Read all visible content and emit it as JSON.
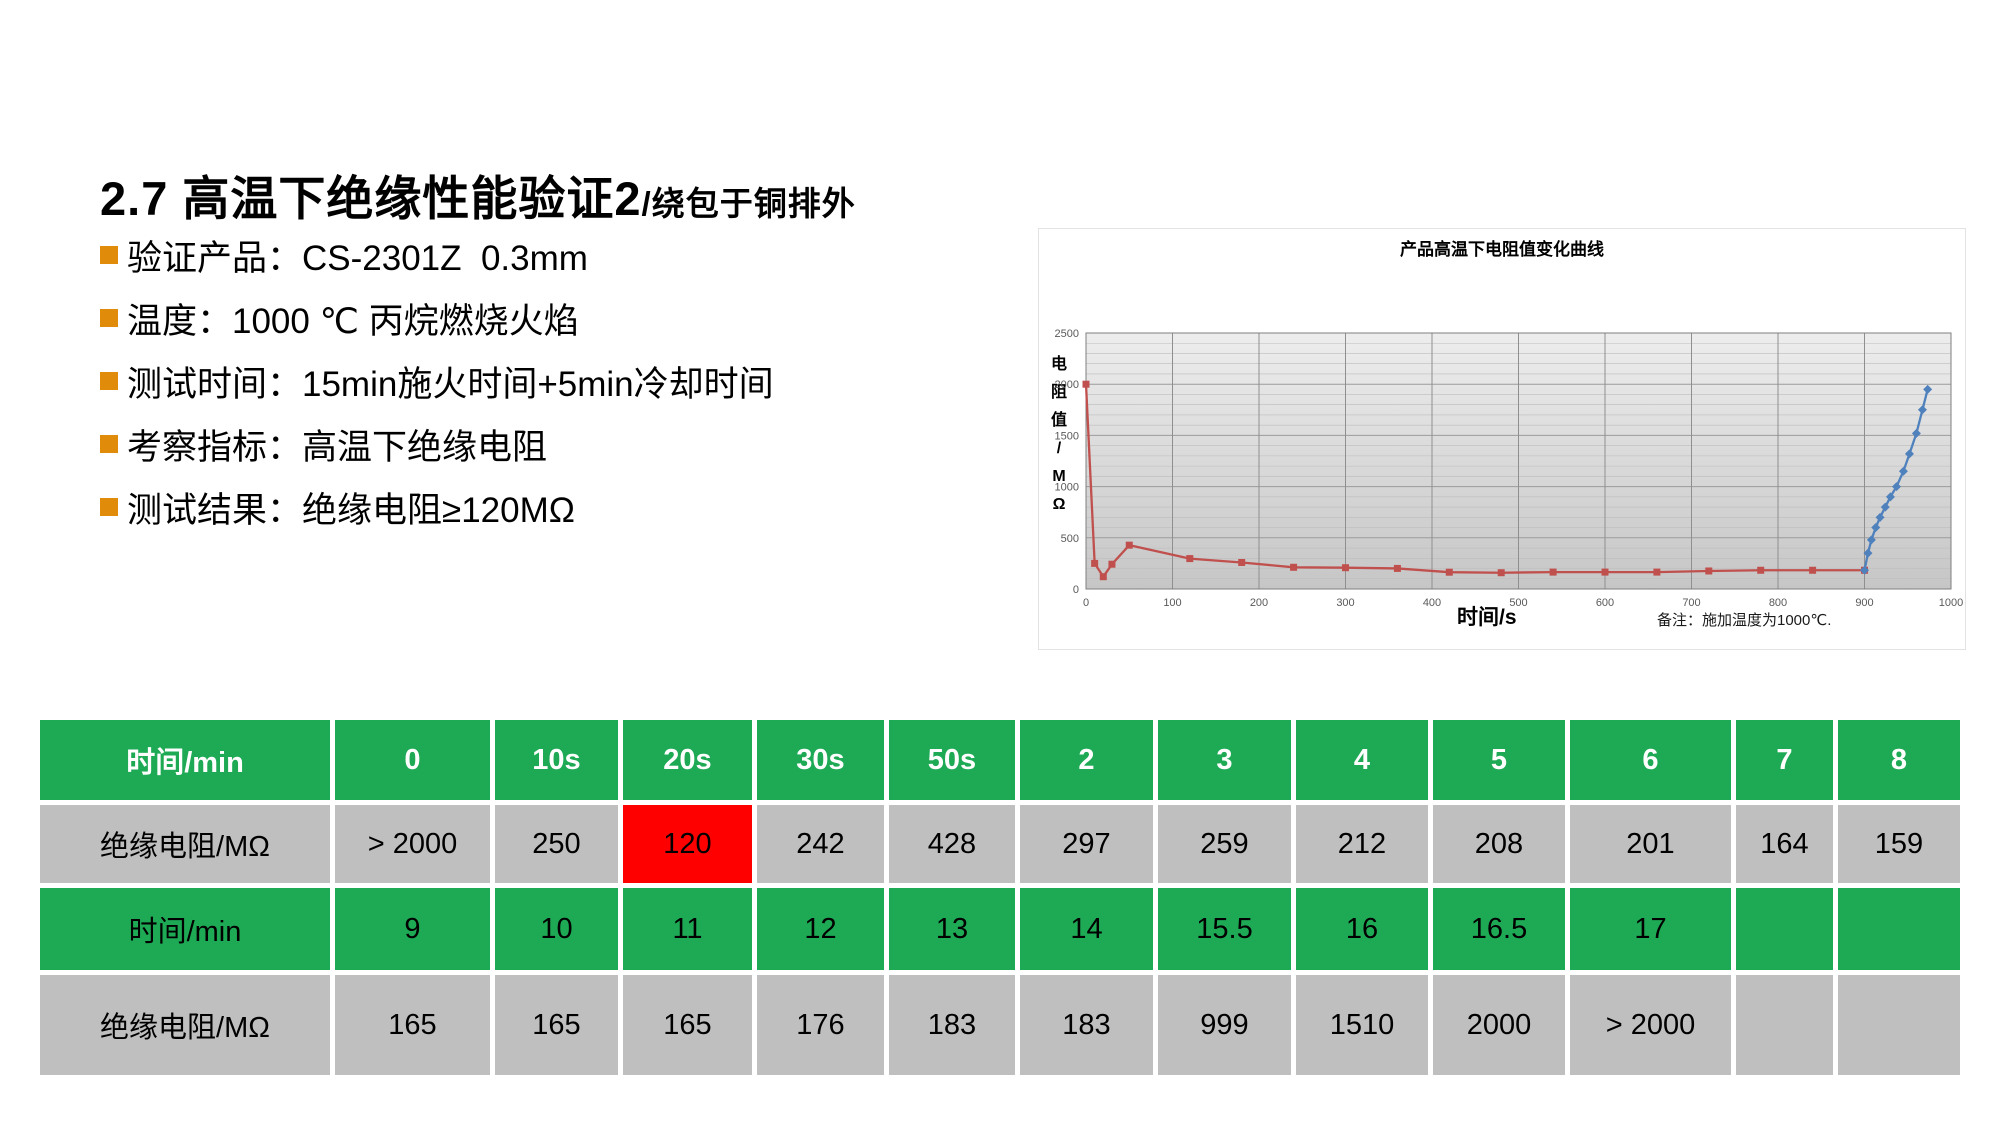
{
  "slide": {
    "title_main": "2.7 高温下绝缘性能验证2",
    "title_suffix": "/绕包于铜排外",
    "bullets": [
      "验证产品：CS-2301Z  0.3mm",
      "温度：1000 ℃ 丙烷燃烧火焰",
      "测试时间：15min施火时间+5min冷却时间",
      "考察指标：高温下绝缘电阻",
      "测试结果：绝缘电阻≥120MΩ"
    ]
  },
  "chart_data": {
    "type": "line",
    "title": "产品高温下电阻值变化曲线",
    "xlabel": "时间/s",
    "ylabel": "电阻值/MΩ",
    "note": "备注：施加温度为1000℃.",
    "xlim": [
      0,
      1000
    ],
    "ylim": [
      0,
      2500
    ],
    "x_ticks": [
      0,
      100,
      200,
      300,
      400,
      500,
      600,
      700,
      800,
      900,
      1000
    ],
    "y_ticks": [
      0,
      500,
      1000,
      1500,
      2000,
      2500
    ],
    "grid": "on",
    "legend": "none",
    "series": [
      {
        "id": "red-series-heating",
        "color": "#c0504d",
        "marker": "square",
        "points": [
          [
            0,
            2000
          ],
          [
            10,
            250
          ],
          [
            20,
            120
          ],
          [
            30,
            242
          ],
          [
            50,
            428
          ],
          [
            120,
            297
          ],
          [
            180,
            259
          ],
          [
            240,
            212
          ],
          [
            300,
            208
          ],
          [
            360,
            201
          ],
          [
            420,
            164
          ],
          [
            480,
            159
          ],
          [
            540,
            165
          ],
          [
            600,
            165
          ],
          [
            660,
            165
          ],
          [
            720,
            176
          ],
          [
            780,
            183
          ],
          [
            840,
            183
          ],
          [
            900,
            183
          ]
        ]
      },
      {
        "id": "blue-series-cooling",
        "color": "#4f81bd",
        "marker": "diamond",
        "points": [
          [
            900,
            183
          ],
          [
            904,
            350
          ],
          [
            908,
            480
          ],
          [
            913,
            600
          ],
          [
            918,
            700
          ],
          [
            924,
            800
          ],
          [
            930,
            900
          ],
          [
            937,
            1000
          ],
          [
            945,
            1150
          ],
          [
            952,
            1320
          ],
          [
            960,
            1520
          ],
          [
            967,
            1750
          ],
          [
            973,
            1950
          ]
        ]
      }
    ]
  },
  "table": {
    "rows": [
      {
        "style": "green",
        "white_text": true,
        "cells": [
          "时间/min",
          "0",
          "10s",
          "20s",
          "30s",
          "50s",
          "2",
          "3",
          "4",
          "5",
          "6",
          "7",
          "8"
        ]
      },
      {
        "style": "gray",
        "highlight_index": 3,
        "cells": [
          "绝缘电阻/MΩ",
          "> 2000",
          "250",
          "120",
          "242",
          "428",
          "297",
          "259",
          "212",
          "208",
          "201",
          "164",
          "159"
        ]
      },
      {
        "style": "green",
        "cells": [
          "时间/min",
          "9",
          "10",
          "11",
          "12",
          "13",
          "14",
          "15.5",
          "16",
          "16.5",
          "17",
          "",
          ""
        ]
      },
      {
        "style": "gray",
        "cells": [
          "绝缘电阻/MΩ",
          "165",
          "165",
          "165",
          "176",
          "183",
          "183",
          "999",
          "1510",
          "2000",
          "> 2000",
          "",
          ""
        ]
      }
    ]
  },
  "colors": {
    "table_green": "#1eaa55",
    "table_gray": "#bfbfbf",
    "highlight_red": "#ff0000",
    "bullet_orange": "#e08c0a",
    "series_red": "#c0504d",
    "series_blue": "#4f81bd"
  }
}
